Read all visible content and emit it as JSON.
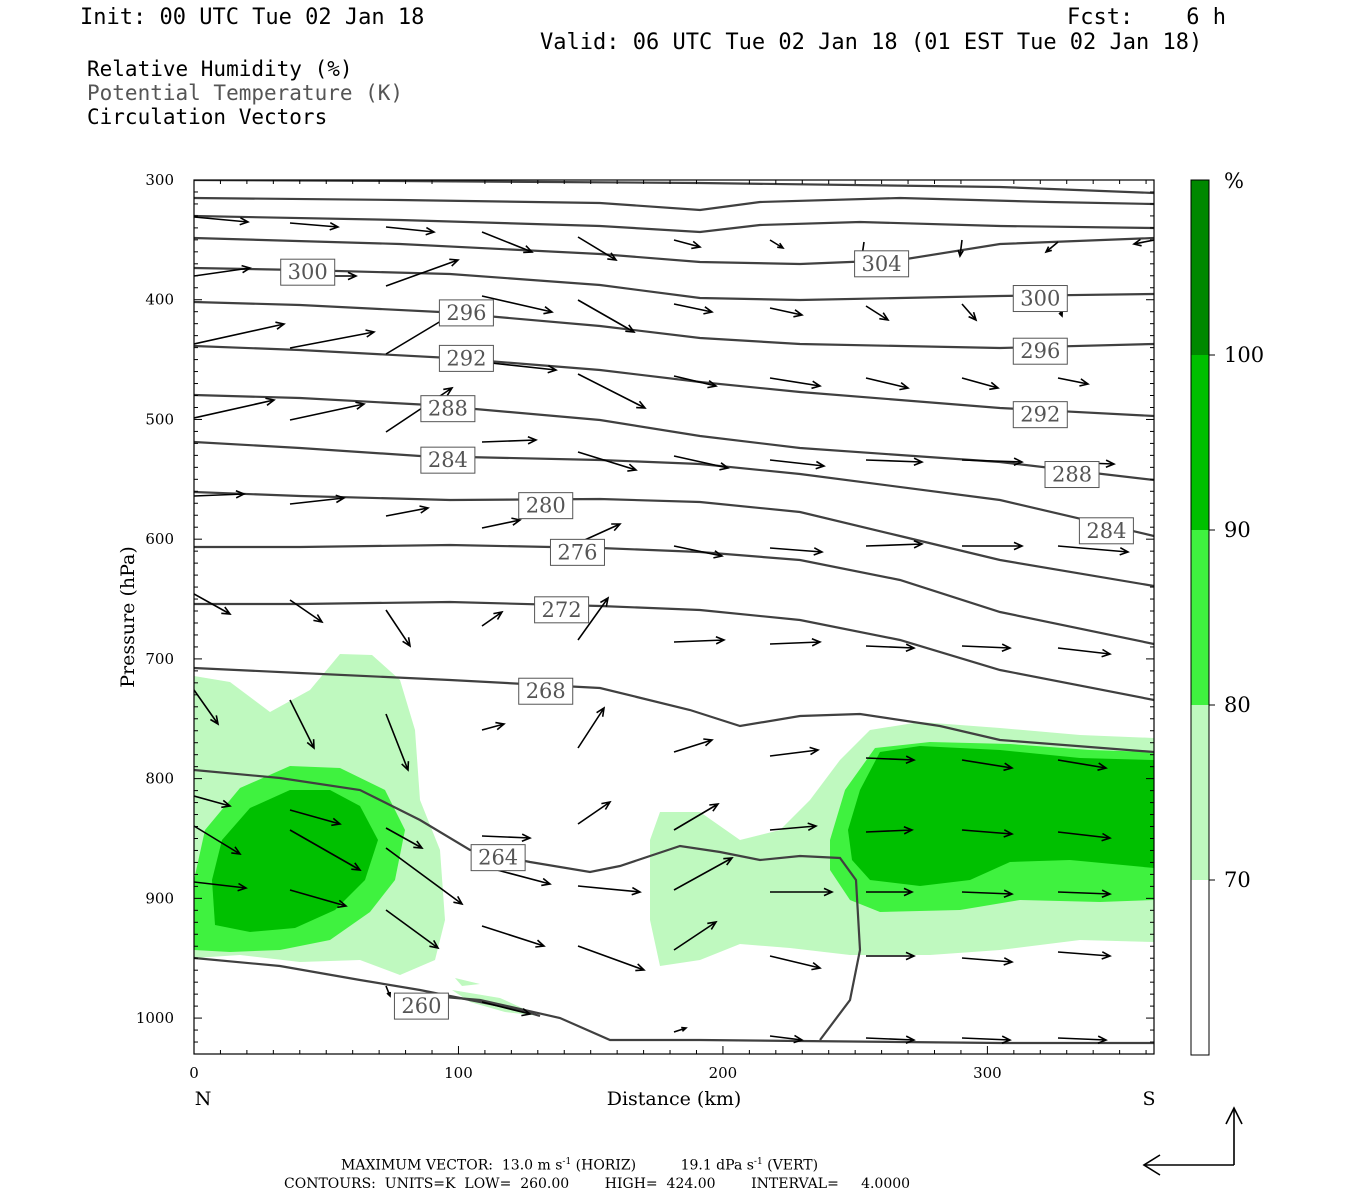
{
  "header": {
    "init": "Init: 00 UTC Tue 02 Jan 18",
    "fcst": "Fcst:    6 h",
    "valid": "Valid: 06 UTC Tue 02 Jan 18 (01 EST Tue 02 Jan 18)"
  },
  "legend": {
    "line1": "Relative Humidity (%)",
    "line2": "Potential Temperature (K)",
    "line3": "Circulation Vectors"
  },
  "footer": {
    "line1_a": "MAXIMUM VECTOR:  13.0 m s",
    "line1_b": "-1",
    "line1_c": " (HORIZ)          19.1 dPa s",
    "line1_d": "-1",
    "line1_e": " (VERT)",
    "line2": "CONTOURS:  UNITS=K  LOW=  260.00        HIGH=  424.00        INTERVAL=     4.0000"
  },
  "colors": {
    "rh70": "#bff9bf",
    "rh80": "#3ff23f",
    "rh90": "#00c000",
    "rh100": "#008800",
    "contour": "#404040",
    "vector": "#000000"
  },
  "chart_data": {
    "type": "cross-section",
    "xlabel": "Distance (km)",
    "ylabel": "Pressure (hPa)",
    "xlim": [
      0,
      363
    ],
    "ylim": [
      1030,
      300
    ],
    "x_ticks": [
      0,
      100,
      200,
      300
    ],
    "y_ticks": [
      300,
      400,
      500,
      600,
      700,
      800,
      900,
      1000
    ],
    "endpoints": {
      "left": "N",
      "right": "S"
    },
    "colorbar": {
      "unit": "%",
      "levels": [
        70,
        80,
        90,
        100
      ]
    },
    "theta_contour_labels": [
      {
        "value": "300",
        "x": 43,
        "p": 377
      },
      {
        "value": "296",
        "x": 103,
        "p": 411
      },
      {
        "value": "292",
        "x": 103,
        "p": 449
      },
      {
        "value": "288",
        "x": 96,
        "p": 491
      },
      {
        "value": "284",
        "x": 96,
        "p": 534
      },
      {
        "value": "280",
        "x": 133,
        "p": 572
      },
      {
        "value": "276",
        "x": 145,
        "p": 611
      },
      {
        "value": "272",
        "x": 139,
        "p": 659
      },
      {
        "value": "268",
        "x": 133,
        "p": 727
      },
      {
        "value": "264",
        "x": 115,
        "p": 866
      },
      {
        "value": "260",
        "x": 86,
        "p": 990
      },
      {
        "value": "304",
        "x": 260,
        "p": 370
      },
      {
        "value": "300",
        "x": 320,
        "p": 399
      },
      {
        "value": "296",
        "x": 320,
        "p": 443
      },
      {
        "value": "292",
        "x": 320,
        "p": 496
      },
      {
        "value": "288",
        "x": 332,
        "p": 546
      },
      {
        "value": "284",
        "x": 345,
        "p": 593
      }
    ]
  }
}
